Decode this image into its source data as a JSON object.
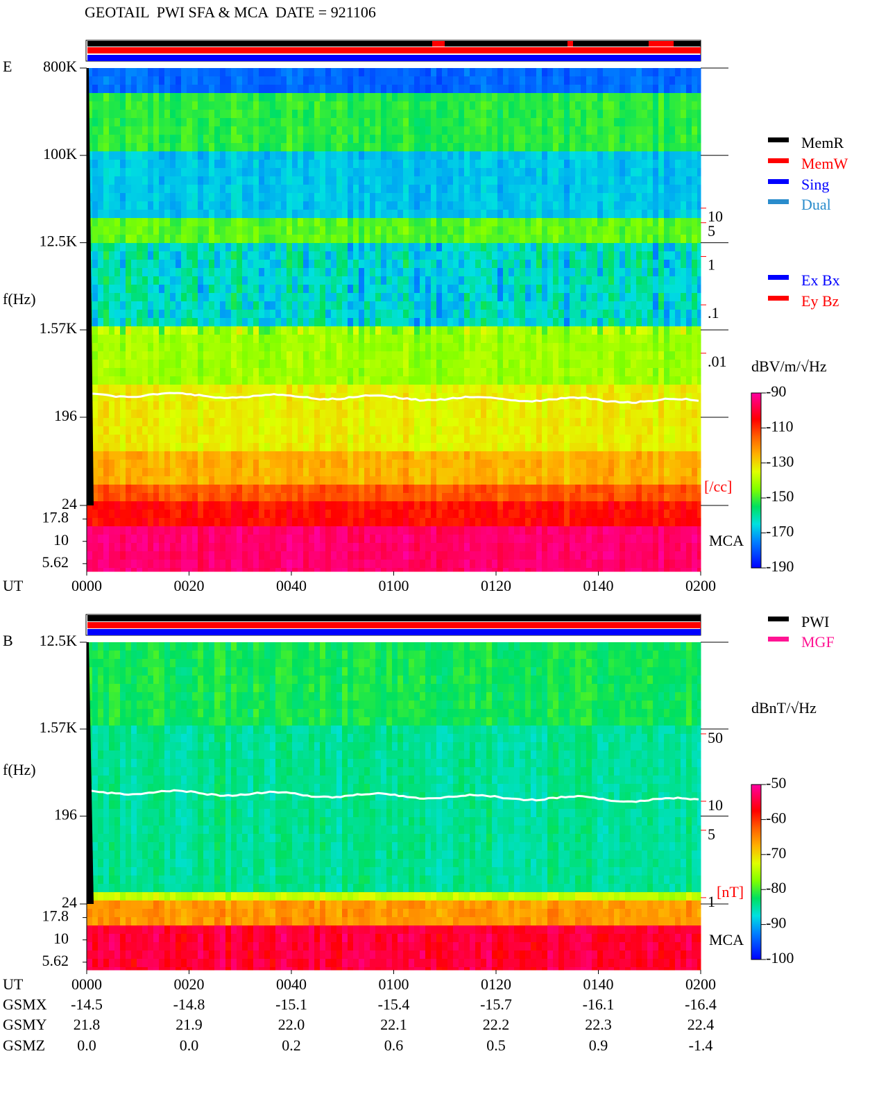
{
  "title": "GEOTAIL  PWI SFA & MCA  DATE = 921106",
  "chart_data": [
    {
      "type": "spectrogram",
      "panel_label": "E",
      "y_label": "f(Hz)",
      "x_label": "UT",
      "log_y": true,
      "xlim": [
        0,
        120
      ],
      "xticks": [
        {
          "value": 0,
          "label": "0000"
        },
        {
          "value": 20,
          "label": "0020"
        },
        {
          "value": 40,
          "label": "0040"
        },
        {
          "value": 60,
          "label": "0100"
        },
        {
          "value": 80,
          "label": "0120"
        },
        {
          "value": 100,
          "label": "0140"
        },
        {
          "value": 120,
          "label": "0200"
        }
      ],
      "ylim": [
        24,
        800000
      ],
      "yticks": [
        {
          "value": 800000,
          "label": "800K"
        },
        {
          "value": 100000,
          "label": "100K"
        },
        {
          "value": 12500,
          "label": "12.5K"
        },
        {
          "value": 1570,
          "label": "1.57K"
        },
        196,
        24
      ],
      "mca_label": "MCA",
      "mca_ylim": [
        4.6,
        25.3
      ],
      "mca_yticks": [
        17.8,
        10,
        5.62
      ],
      "y2_label": "[/cc]",
      "y2_color": "#ff0000",
      "y2lim": [
        7.1e-06,
        7900
      ],
      "y2ticks": [
        10,
        5,
        1,
        {
          "value": 0.1,
          "label": ".1"
        },
        {
          "value": 0.01,
          "label": ".01"
        }
      ],
      "status_legend": [
        {
          "name": "MemR",
          "color": "#000000"
        },
        {
          "name": "MemW",
          "color": "#ff0000"
        },
        {
          "name": "Sing",
          "color": "#0000ff"
        },
        {
          "name": "Dual",
          "color": "#2a8ccc"
        }
      ],
      "component_legend": [
        {
          "name": "Ex Bx",
          "color": "#0000ff"
        },
        {
          "name": "Ey Bz",
          "color": "#ff0000"
        }
      ],
      "colorbar": {
        "label": "dBV/m/√Hz",
        "zlim": [
          -190,
          -90
        ],
        "ticks": [
          -90,
          -110,
          -130,
          -150,
          -170,
          -190
        ]
      }
    },
    {
      "type": "spectrogram",
      "panel_label": "B",
      "y_label": "f(Hz)",
      "x_label": "UT",
      "log_y": true,
      "xlim": [
        0,
        120
      ],
      "xticks": [
        {
          "value": 0,
          "label": "0000"
        },
        {
          "value": 20,
          "label": "0020"
        },
        {
          "value": 40,
          "label": "0040"
        },
        {
          "value": 60,
          "label": "0100"
        },
        {
          "value": 80,
          "label": "0120"
        },
        {
          "value": 100,
          "label": "0140"
        },
        {
          "value": 120,
          "label": "0200"
        }
      ],
      "ylim": [
        24,
        12500
      ],
      "yticks": [
        {
          "value": 12500,
          "label": "12.5K"
        },
        {
          "value": 1570,
          "label": "1.57K"
        },
        196,
        24
      ],
      "mca_label": "MCA",
      "mca_ylim": [
        4.6,
        25.3
      ],
      "mca_yticks": [
        17.8,
        10,
        5.62
      ],
      "y2_label": "[nT]",
      "y2_color": "#ff0000",
      "y2lim": [
        0.86,
        446
      ],
      "y2ticks": [
        50,
        10,
        5,
        1
      ],
      "status_legend": [
        {
          "name": "PWI",
          "color": "#000000"
        },
        {
          "name": "MGF",
          "color": "#ff1493"
        }
      ],
      "component_legend": [],
      "colorbar": {
        "label": "dBnT/√Hz",
        "zlim": [
          -100,
          -50
        ],
        "ticks": [
          -50,
          -60,
          -70,
          -80,
          -90,
          -100
        ]
      }
    }
  ],
  "orbit_table": {
    "rows": [
      {
        "label": "GSMX",
        "values": [
          "-14.5",
          "-14.8",
          "-15.1",
          "-15.4",
          "-15.7",
          "-16.1",
          "-16.4"
        ]
      },
      {
        "label": "GSMY",
        "values": [
          "21.8",
          "21.9",
          "22.0",
          "22.1",
          "22.2",
          "22.3",
          "22.4"
        ]
      },
      {
        "label": "GSMZ",
        "values": [
          "0.0",
          "0.0",
          "0.2",
          "0.6",
          "0.5",
          "0.9",
          "-1.4"
        ]
      }
    ]
  }
}
